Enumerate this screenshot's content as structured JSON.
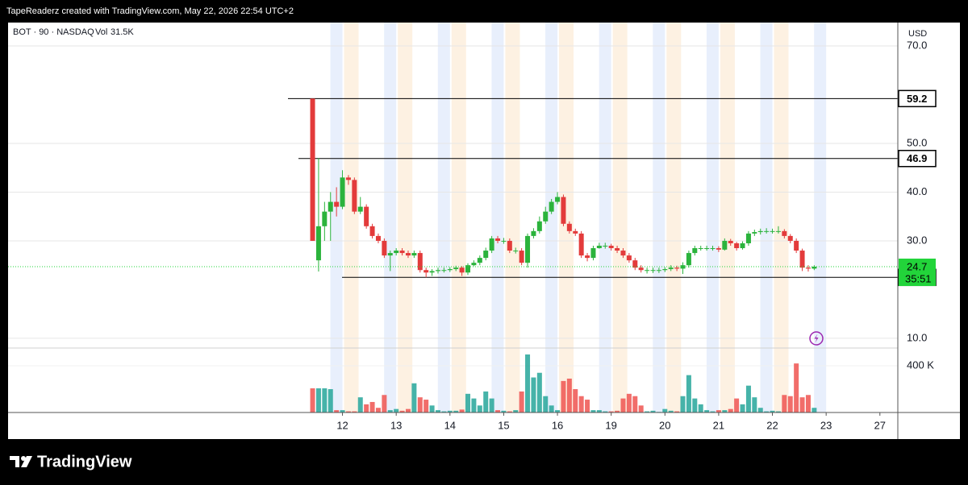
{
  "header": {
    "attribution": "TapeReaderz created with TradingView.com, May 22, 2026 22:54 UTC+2"
  },
  "footer": {
    "brand": "TradingView"
  },
  "chart_data": {
    "type": "candlestick",
    "symbol_line": "BOT · 90 · NASDAQ",
    "volume_label": "Vol",
    "volume_value": "31.5K",
    "currency": "USD",
    "countdown": "35:51",
    "up_color": "#2bb33c",
    "down_color": "#e33b3b",
    "volume_up_color": "#26a69a",
    "volume_down_color": "#ef5350",
    "hline_color": "#000000",
    "last_color": "#22d43a",
    "x": [
      0,
      1,
      2,
      3,
      4,
      5,
      6,
      7,
      8,
      9,
      10,
      11,
      12,
      13,
      14,
      15,
      16,
      17,
      18,
      19,
      20,
      21,
      22,
      23,
      24,
      25,
      26,
      27,
      28,
      29,
      30,
      31,
      32,
      33,
      34,
      35,
      36,
      37,
      38,
      39,
      40,
      41,
      42,
      43,
      44,
      45,
      46,
      47,
      48,
      49,
      50,
      51,
      52,
      53,
      54,
      55,
      56,
      57,
      58,
      59,
      60,
      61,
      62,
      63,
      64,
      65,
      66,
      67,
      68,
      69,
      70,
      71,
      72,
      73,
      74,
      75,
      76,
      77,
      78,
      79,
      80,
      81,
      82,
      83,
      84
    ],
    "open": [
      59.2,
      26,
      33,
      36,
      38,
      37,
      43,
      42.5,
      36,
      37,
      33,
      31,
      30,
      27,
      27.5,
      28,
      27.5,
      27,
      27.5,
      24,
      23.5,
      23.8,
      24,
      24,
      24.2,
      24.5,
      23.5,
      25,
      25.5,
      26.5,
      28,
      30.5,
      30,
      30,
      28,
      28,
      25.5,
      31,
      32,
      34,
      36,
      38,
      39,
      33.5,
      32,
      31.5,
      27,
      26.5,
      28.5,
      29,
      29,
      28.5,
      28,
      27,
      26,
      24.5,
      24,
      24,
      24,
      24,
      24.2,
      24.5,
      24.3,
      25,
      27.5,
      28.5,
      28.5,
      28.5,
      28.5,
      28.2,
      30,
      29.5,
      28.5,
      29.5,
      31.5,
      31.8,
      32,
      32,
      32,
      32,
      31,
      30,
      28,
      24.5,
      24.3
    ],
    "high": [
      59.2,
      47,
      38,
      40,
      41,
      44.5,
      43.5,
      43,
      39,
      37.5,
      33.5,
      31.5,
      30.5,
      28,
      28.5,
      28.5,
      28,
      28,
      28,
      24.5,
      24.2,
      24.5,
      24.5,
      24.6,
      24.9,
      24.8,
      25.4,
      26,
      27,
      28.6,
      31,
      31,
      30.6,
      30.5,
      28.6,
      28.5,
      31.5,
      32.6,
      35,
      37,
      38.6,
      40,
      39.5,
      34,
      32.5,
      32,
      27.5,
      29,
      29.6,
      29.6,
      29.4,
      29,
      28.5,
      27.5,
      26.5,
      25,
      24.5,
      24.5,
      24.5,
      24.6,
      25,
      24.9,
      25.6,
      28,
      29,
      29,
      29,
      29,
      28.9,
      30.5,
      30.4,
      29.8,
      29.9,
      32,
      32.3,
      32.5,
      32.6,
      32.5,
      33,
      32.4,
      31.4,
      30.5,
      28.4,
      25,
      25
    ],
    "low": [
      30,
      23.7,
      30,
      30,
      35,
      36.5,
      41.5,
      35.5,
      35.5,
      32.5,
      30.5,
      29.5,
      26.5,
      23.8,
      27,
      27,
      26.5,
      26.5,
      23.5,
      22.5,
      22.8,
      23.3,
      23.5,
      23.6,
      23.8,
      22.8,
      23,
      24.8,
      25,
      26,
      27.5,
      29.5,
      29.4,
      27.5,
      27.4,
      25,
      24.5,
      30.5,
      31.5,
      33.5,
      35.5,
      37.5,
      33,
      31.5,
      31,
      26.5,
      25.8,
      26,
      28.4,
      28.4,
      28,
      27.5,
      26.5,
      25.5,
      24,
      23.5,
      23.3,
      23.4,
      23.4,
      23.6,
      23.8,
      23.8,
      23.2,
      24.5,
      27,
      28,
      28,
      28,
      27.7,
      28,
      29,
      28,
      28.2,
      29,
      31,
      31.3,
      31.5,
      31.5,
      31.5,
      30.5,
      29.5,
      27.5,
      23.8,
      23.7,
      24
    ],
    "close": [
      30,
      33,
      36,
      38,
      37,
      43,
      42.5,
      36,
      37,
      33,
      31,
      30,
      27,
      27.5,
      28,
      27.5,
      27,
      27.5,
      24,
      23.5,
      23.8,
      24,
      24,
      24.2,
      24.5,
      23.5,
      25,
      25.5,
      26.5,
      28,
      30.5,
      30,
      30,
      28,
      28,
      25.5,
      31,
      32,
      34,
      36,
      38,
      39,
      33.5,
      32,
      31.5,
      27,
      26.5,
      28.5,
      29,
      29,
      28.5,
      28,
      27,
      26,
      24.5,
      24,
      24,
      24,
      24,
      24.2,
      24.5,
      24.3,
      25,
      27.5,
      28.5,
      28.5,
      28.5,
      28.5,
      28.2,
      30,
      29.5,
      28.5,
      29.5,
      31.5,
      31.8,
      32,
      32,
      32,
      32,
      31,
      30,
      28,
      24.5,
      24.3,
      24.7
    ],
    "volume": [
      207,
      207,
      207,
      200,
      20,
      20,
      10,
      10,
      130,
      70,
      90,
      40,
      150,
      20,
      30,
      15,
      30,
      250,
      130,
      110,
      60,
      20,
      10,
      15,
      15,
      25,
      160,
      120,
      60,
      180,
      120,
      20,
      15,
      10,
      20,
      180,
      497,
      300,
      340,
      140,
      60,
      20,
      270,
      290,
      200,
      140,
      110,
      20,
      20,
      10,
      10,
      15,
      120,
      160,
      140,
      60,
      10,
      15,
      5,
      30,
      15,
      10,
      140,
      320,
      120,
      70,
      20,
      10,
      20,
      20,
      30,
      120,
      70,
      230,
      130,
      40,
      10,
      15,
      10,
      150,
      140,
      420,
      130,
      150,
      40
    ],
    "hlines": [
      59.2,
      46.9,
      22.5
    ],
    "xlim": [
      -51,
      98
    ],
    "ylim": [
      8,
      74.8
    ],
    "volume_ylim": [
      0,
      552
    ],
    "yticks": [
      {
        "value": 10,
        "label": "10.0"
      },
      {
        "value": 30,
        "label": "30.0"
      },
      {
        "value": 40,
        "label": "40.0"
      },
      {
        "value": 50,
        "label": "50.0"
      },
      {
        "value": 70,
        "label": "70.0"
      }
    ],
    "volume_ticks": [
      {
        "value": 400,
        "label": "400 K"
      }
    ],
    "xticks": [
      {
        "value": 5,
        "label": "12"
      },
      {
        "value": 14,
        "label": "13"
      },
      {
        "value": 23,
        "label": "14"
      },
      {
        "value": 32,
        "label": "15"
      },
      {
        "value": 41,
        "label": "16"
      },
      {
        "value": 50,
        "label": "19"
      },
      {
        "value": 59,
        "label": "20"
      },
      {
        "value": 68,
        "label": "21"
      },
      {
        "value": 77,
        "label": "22"
      },
      {
        "value": 86,
        "label": "23"
      },
      {
        "value": 95,
        "label": "27"
      }
    ],
    "grid": true
  }
}
